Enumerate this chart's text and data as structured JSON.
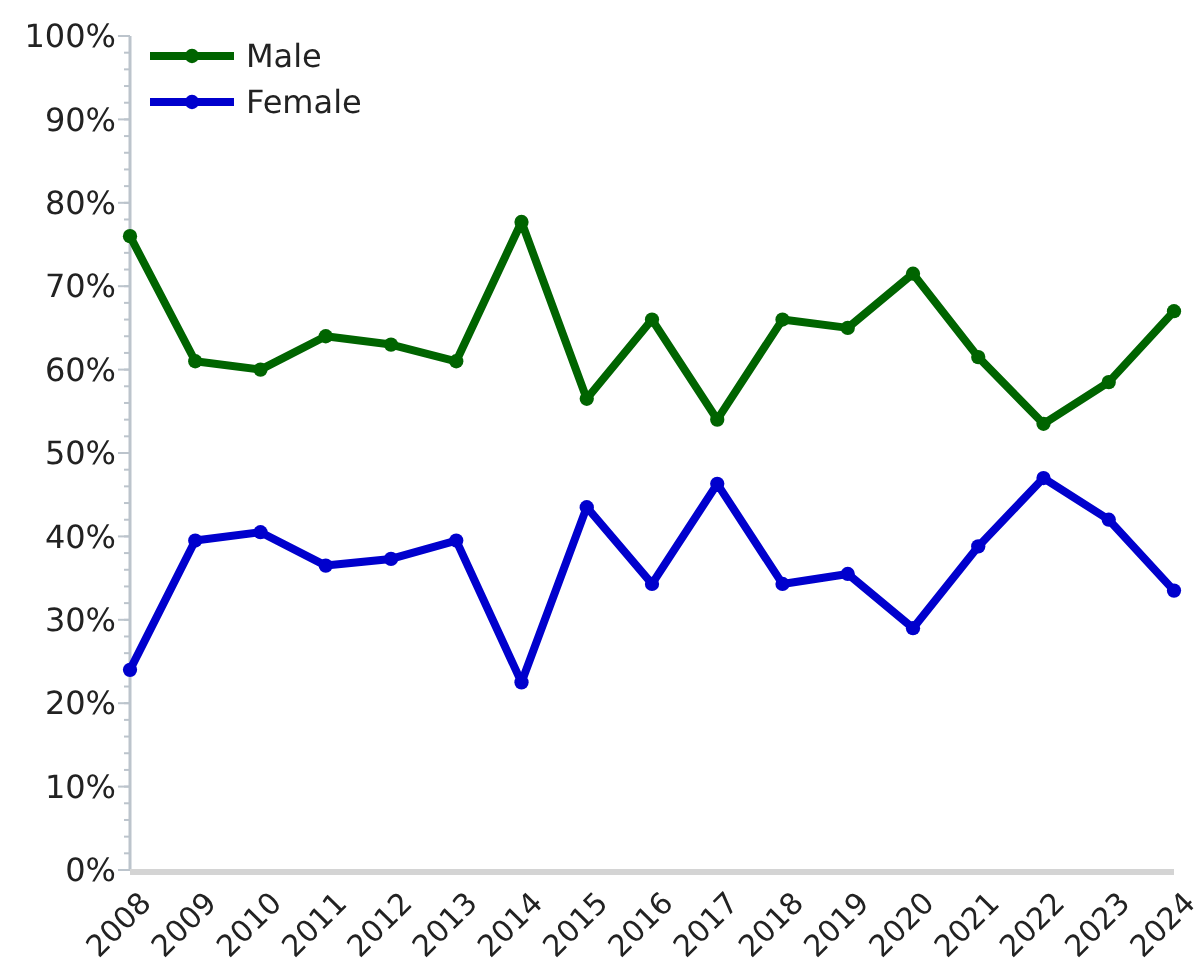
{
  "chart_data": {
    "type": "line",
    "categories": [
      "2008",
      "2009",
      "2010",
      "2011",
      "2012",
      "2013",
      "2014",
      "2015",
      "2016",
      "2017",
      "2018",
      "2019",
      "2020",
      "2021",
      "2022",
      "2023",
      "2024"
    ],
    "series": [
      {
        "name": "Male",
        "color": "#006400",
        "values": [
          76,
          61,
          60,
          64,
          63,
          61,
          77.7,
          56.5,
          66,
          54,
          66,
          65,
          71.5,
          61.5,
          53.5,
          58.5,
          67
        ]
      },
      {
        "name": "Female",
        "color": "#0000cd",
        "values": [
          24,
          39.5,
          40.5,
          36.5,
          37.3,
          39.5,
          22.5,
          43.5,
          34.3,
          46.3,
          34.3,
          35.5,
          29,
          38.8,
          47,
          42,
          33.5
        ]
      }
    ],
    "ylim": [
      0,
      100
    ],
    "yticks": [
      {
        "value": 0,
        "label": "0%"
      },
      {
        "value": 10,
        "label": "10%"
      },
      {
        "value": 20,
        "label": "20%"
      },
      {
        "value": 30,
        "label": "30%"
      },
      {
        "value": 40,
        "label": "40%"
      },
      {
        "value": 50,
        "label": "50%"
      },
      {
        "value": 60,
        "label": "60%"
      },
      {
        "value": 70,
        "label": "70%"
      },
      {
        "value": 80,
        "label": "80%"
      },
      {
        "value": 90,
        "label": "90%"
      },
      {
        "value": 100,
        "label": "100%"
      }
    ],
    "grid": false,
    "legend": "top left",
    "marker": "circle",
    "line_style": "solid"
  }
}
